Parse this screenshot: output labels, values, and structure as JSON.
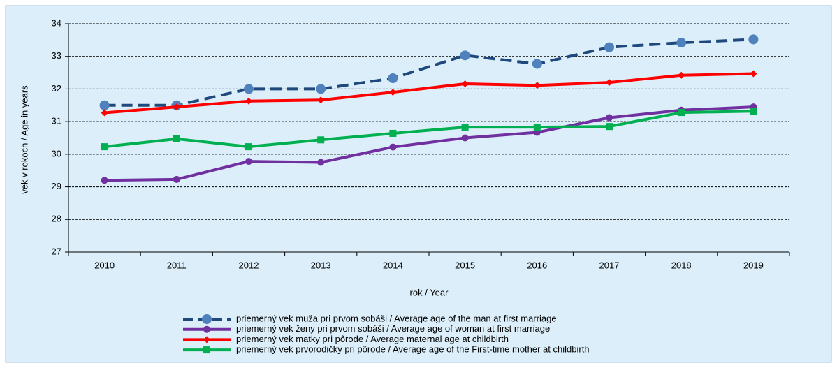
{
  "chart_data": {
    "type": "line",
    "y_label": "vek v rokoch / Age in years",
    "x_label": "rok / Year",
    "categories": [
      "2010",
      "2011",
      "2012",
      "2013",
      "2014",
      "2015",
      "2016",
      "2017",
      "2018",
      "2019"
    ],
    "ylim": [
      27,
      34
    ],
    "yticks": [
      27,
      28,
      29,
      30,
      31,
      32,
      33,
      34
    ],
    "grid": true,
    "legend": "bottom",
    "series": [
      {
        "name": "priemerný vek muža pri prvom sobáši / Average age of the man at first marriage",
        "color": "#1f497d",
        "marker_color": "#4f81bd",
        "marker": "circle",
        "dashed": true,
        "values": [
          31.5,
          31.5,
          32.0,
          32.0,
          32.33,
          33.03,
          32.77,
          33.28,
          33.42,
          33.52
        ]
      },
      {
        "name": "priemerný vek ženy pri prvom sobáši / Average age of woman at first marriage",
        "color": "#7030a0",
        "marker_color": "#7030a0",
        "marker": "circle",
        "dashed": false,
        "values": [
          29.2,
          29.23,
          29.78,
          29.75,
          30.22,
          30.5,
          30.67,
          31.12,
          31.35,
          31.45
        ]
      },
      {
        "name": "priemerný vek matky pri pôrode / Average maternal age at childbirth",
        "color": "#ff0000",
        "marker_color": "#ff0000",
        "marker": "diamond",
        "dashed": false,
        "values": [
          31.27,
          31.45,
          31.63,
          31.66,
          31.9,
          32.16,
          32.11,
          32.2,
          32.42,
          32.47
        ]
      },
      {
        "name": "priemerný vek prvorodičky pri pôrode / Average age of the First-time mother at childbirth",
        "color": "#00b050",
        "marker_color": "#00b050",
        "marker": "square",
        "dashed": false,
        "values": [
          30.23,
          30.47,
          30.23,
          30.44,
          30.64,
          30.83,
          30.83,
          30.85,
          31.28,
          31.32
        ]
      }
    ]
  }
}
